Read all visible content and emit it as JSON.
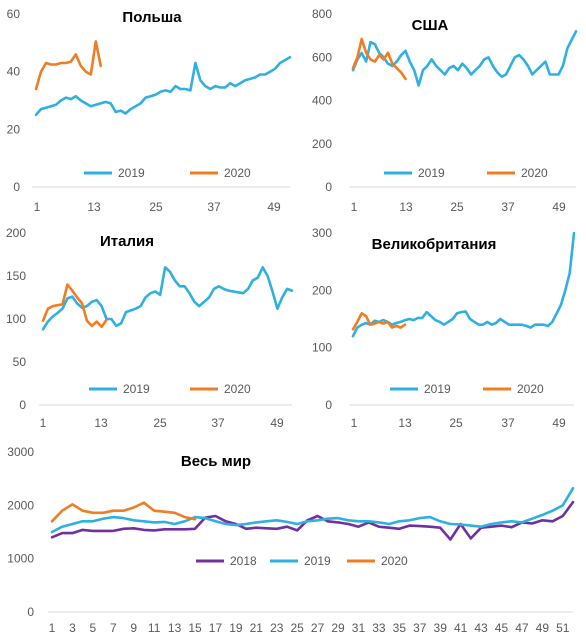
{
  "chart_data": [
    {
      "type": "line",
      "title": "Польша",
      "x_ticks": [
        "1",
        "13",
        "25",
        "37",
        "49"
      ],
      "ylim": [
        0,
        60
      ],
      "y_ticks": [
        "0",
        "20",
        "40",
        "60"
      ],
      "legend_position": "bottom",
      "series": [
        {
          "name": "2019",
          "color": "#2FB0E0",
          "x": [
            1,
            2,
            3,
            4,
            5,
            6,
            7,
            8,
            9,
            10,
            11,
            12,
            13,
            14,
            15,
            16,
            17,
            18,
            19,
            20,
            21,
            22,
            23,
            24,
            25,
            26,
            27,
            28,
            29,
            30,
            31,
            32,
            33,
            34,
            35,
            36,
            37,
            38,
            39,
            40,
            41,
            42,
            43,
            44,
            45,
            46,
            47,
            48,
            49,
            50,
            51,
            52
          ],
          "values": [
            25,
            27,
            27.5,
            28,
            28.5,
            30,
            31,
            30.5,
            31.5,
            30,
            29,
            28,
            28.5,
            29,
            29.5,
            29,
            26,
            26.5,
            25.5,
            27,
            28,
            29,
            31,
            31.5,
            32,
            33,
            33.5,
            33,
            35,
            34,
            34,
            33.5,
            43,
            37,
            35,
            34,
            35,
            34.5,
            34.5,
            36,
            35,
            36,
            37,
            37.5,
            38,
            39,
            39,
            40,
            41,
            43,
            44,
            45
          ]
        },
        {
          "name": "2020",
          "color": "#F07D22",
          "x": [
            1,
            2,
            3,
            4,
            5,
            6,
            7,
            8,
            9,
            10,
            11,
            12,
            13,
            14,
            15
          ],
          "values": [
            34,
            40,
            43,
            42.5,
            42.5,
            43,
            43,
            43.5,
            46,
            42,
            40,
            39,
            50.5,
            42,
            null
          ]
        }
      ]
    },
    {
      "type": "line",
      "title": "США",
      "x_ticks": [
        "1",
        "13",
        "25",
        "37",
        "49"
      ],
      "ylim": [
        0,
        800
      ],
      "y_ticks": [
        "0",
        "200",
        "400",
        "600",
        "800"
      ],
      "legend_position": "bottom",
      "series": [
        {
          "name": "2019",
          "color": "#2FB0E0",
          "x": [
            1,
            2,
            3,
            4,
            5,
            6,
            7,
            8,
            9,
            10,
            11,
            12,
            13,
            14,
            15,
            16,
            17,
            18,
            19,
            20,
            21,
            22,
            23,
            24,
            25,
            26,
            27,
            28,
            29,
            30,
            31,
            32,
            33,
            34,
            35,
            36,
            37,
            38,
            39,
            40,
            41,
            42,
            43,
            44,
            45,
            46,
            47,
            48,
            49,
            50,
            51,
            52
          ],
          "values": [
            540,
            590,
            620,
            580,
            670,
            660,
            620,
            600,
            570,
            560,
            580,
            610,
            630,
            580,
            540,
            470,
            540,
            560,
            590,
            560,
            540,
            520,
            550,
            560,
            540,
            570,
            550,
            520,
            540,
            560,
            590,
            600,
            560,
            530,
            510,
            520,
            560,
            600,
            610,
            590,
            560,
            520,
            540,
            560,
            580,
            520,
            520,
            520,
            560,
            640,
            680,
            720
          ]
        },
        {
          "name": "2020",
          "color": "#F07D22",
          "x": [
            1,
            2,
            3,
            4,
            5,
            6,
            7,
            8,
            9,
            10,
            11,
            12,
            13,
            14
          ],
          "values": [
            550,
            600,
            685,
            620,
            590,
            580,
            610,
            590,
            620,
            570,
            550,
            530,
            500,
            null
          ]
        }
      ]
    },
    {
      "type": "line",
      "title": "Италия",
      "x_ticks": [
        "1",
        "13",
        "25",
        "37",
        "49"
      ],
      "ylim": [
        0,
        200
      ],
      "y_ticks": [
        "0",
        "50",
        "100",
        "150",
        "200"
      ],
      "legend_position": "bottom",
      "series": [
        {
          "name": "2019",
          "color": "#2FB0E0",
          "x": [
            1,
            2,
            3,
            4,
            5,
            6,
            7,
            8,
            9,
            10,
            11,
            12,
            13,
            14,
            15,
            16,
            17,
            18,
            19,
            20,
            21,
            22,
            23,
            24,
            25,
            26,
            27,
            28,
            29,
            30,
            31,
            32,
            33,
            34,
            35,
            36,
            37,
            38,
            39,
            40,
            41,
            42,
            43,
            44,
            45,
            46,
            47,
            48,
            49,
            50,
            51,
            52
          ],
          "values": [
            88,
            97,
            103,
            107,
            112,
            124,
            126,
            118,
            113,
            115,
            120,
            122,
            115,
            100,
            100,
            92,
            95,
            108,
            110,
            112,
            115,
            125,
            130,
            132,
            128,
            160,
            155,
            145,
            138,
            138,
            130,
            120,
            115,
            120,
            125,
            135,
            138,
            135,
            133,
            132,
            131,
            130,
            135,
            145,
            148,
            160,
            150,
            132,
            112,
            125,
            135,
            133
          ]
        },
        {
          "name": "2020",
          "color": "#F07D22",
          "x": [
            1,
            2,
            3,
            4,
            5,
            6,
            7,
            8,
            9,
            10,
            11,
            12,
            13,
            14
          ],
          "values": [
            98,
            112,
            115,
            116,
            117,
            140,
            133,
            125,
            118,
            98,
            92,
            97,
            91,
            99
          ]
        }
      ]
    },
    {
      "type": "line",
      "title": "Великобритания",
      "x_ticks": [
        "1",
        "13",
        "25",
        "37",
        "49"
      ],
      "ylim": [
        0,
        300
      ],
      "y_ticks": [
        "0",
        "100",
        "200",
        "300"
      ],
      "legend_position": "bottom",
      "series": [
        {
          "name": "2019",
          "color": "#2FB0E0",
          "x": [
            1,
            2,
            3,
            4,
            5,
            6,
            7,
            8,
            9,
            10,
            11,
            12,
            13,
            14,
            15,
            16,
            17,
            18,
            19,
            20,
            21,
            22,
            23,
            24,
            25,
            26,
            27,
            28,
            29,
            30,
            31,
            32,
            33,
            34,
            35,
            36,
            37,
            38,
            39,
            40,
            41,
            42,
            43,
            44,
            45,
            46,
            47,
            48,
            49,
            50,
            51,
            52
          ],
          "values": [
            120,
            135,
            140,
            143,
            140,
            147,
            145,
            148,
            145,
            140,
            143,
            145,
            148,
            150,
            148,
            152,
            152,
            162,
            155,
            148,
            145,
            140,
            145,
            150,
            160,
            162,
            163,
            150,
            145,
            140,
            140,
            145,
            140,
            143,
            150,
            145,
            140,
            140,
            140,
            140,
            138,
            135,
            140,
            140,
            140,
            138,
            145,
            160,
            175,
            200,
            230,
            300
          ]
        },
        {
          "name": "2020",
          "color": "#F07D22",
          "x": [
            1,
            2,
            3,
            4,
            5,
            6,
            7,
            8,
            9,
            10,
            11,
            12,
            13,
            14
          ],
          "values": [
            132,
            145,
            160,
            155,
            140,
            142,
            145,
            142,
            145,
            135,
            138,
            135,
            140,
            null
          ]
        }
      ]
    },
    {
      "type": "line",
      "title": "Весь мир",
      "x_ticks": [
        "1",
        "3",
        "5",
        "7",
        "9",
        "11",
        "13",
        "15",
        "17",
        "19",
        "21",
        "23",
        "25",
        "27",
        "29",
        "31",
        "33",
        "35",
        "37",
        "39",
        "41",
        "43",
        "45",
        "47",
        "49",
        "51"
      ],
      "ylim": [
        0,
        3000
      ],
      "y_ticks": [
        "0",
        "1000",
        "2000",
        "3000"
      ],
      "legend_position": "bottom",
      "series": [
        {
          "name": "2018",
          "color": "#7030A0",
          "x": [
            1,
            2,
            3,
            4,
            5,
            6,
            7,
            8,
            9,
            10,
            11,
            12,
            13,
            14,
            15,
            16,
            17,
            18,
            19,
            20,
            21,
            22,
            23,
            24,
            25,
            26,
            27,
            28,
            29,
            30,
            31,
            32,
            33,
            34,
            35,
            36,
            37,
            38,
            39,
            40,
            41,
            42,
            43,
            44,
            45,
            46,
            47,
            48,
            49,
            50,
            51,
            52
          ],
          "values": [
            1400,
            1480,
            1480,
            1540,
            1520,
            1520,
            1520,
            1560,
            1570,
            1540,
            1530,
            1550,
            1550,
            1550,
            1560,
            1770,
            1800,
            1700,
            1650,
            1560,
            1580,
            1570,
            1560,
            1600,
            1530,
            1720,
            1800,
            1700,
            1680,
            1650,
            1600,
            1680,
            1600,
            1580,
            1560,
            1620,
            1610,
            1600,
            1580,
            1360,
            1650,
            1380,
            1580,
            1600,
            1620,
            1590,
            1680,
            1660,
            1720,
            1700,
            1800,
            2060
          ]
        },
        {
          "name": "2019",
          "color": "#2FB0E0",
          "x": [
            1,
            2,
            3,
            4,
            5,
            6,
            7,
            8,
            9,
            10,
            11,
            12,
            13,
            14,
            15,
            16,
            17,
            18,
            19,
            20,
            21,
            22,
            23,
            24,
            25,
            26,
            27,
            28,
            29,
            30,
            31,
            32,
            33,
            34,
            35,
            36,
            37,
            38,
            39,
            40,
            41,
            42,
            43,
            44,
            45,
            46,
            47,
            48,
            49,
            50,
            51,
            52
          ],
          "values": [
            1500,
            1600,
            1650,
            1700,
            1700,
            1750,
            1780,
            1760,
            1720,
            1700,
            1680,
            1690,
            1650,
            1700,
            1780,
            1760,
            1700,
            1650,
            1630,
            1650,
            1680,
            1700,
            1720,
            1690,
            1650,
            1700,
            1720,
            1750,
            1760,
            1720,
            1700,
            1700,
            1680,
            1650,
            1700,
            1720,
            1760,
            1780,
            1700,
            1650,
            1640,
            1620,
            1600,
            1650,
            1680,
            1700,
            1680,
            1750,
            1820,
            1900,
            2000,
            2320
          ]
        },
        {
          "name": "2020",
          "color": "#F07D22",
          "x": [
            1,
            2,
            3,
            4,
            5,
            6,
            7,
            8,
            9,
            10,
            11,
            12,
            13,
            14,
            15,
            16
          ],
          "values": [
            1700,
            1900,
            2020,
            1900,
            1860,
            1860,
            1900,
            1900,
            1960,
            2050,
            1900,
            1880,
            1860,
            1780,
            1740,
            null
          ]
        }
      ]
    }
  ]
}
